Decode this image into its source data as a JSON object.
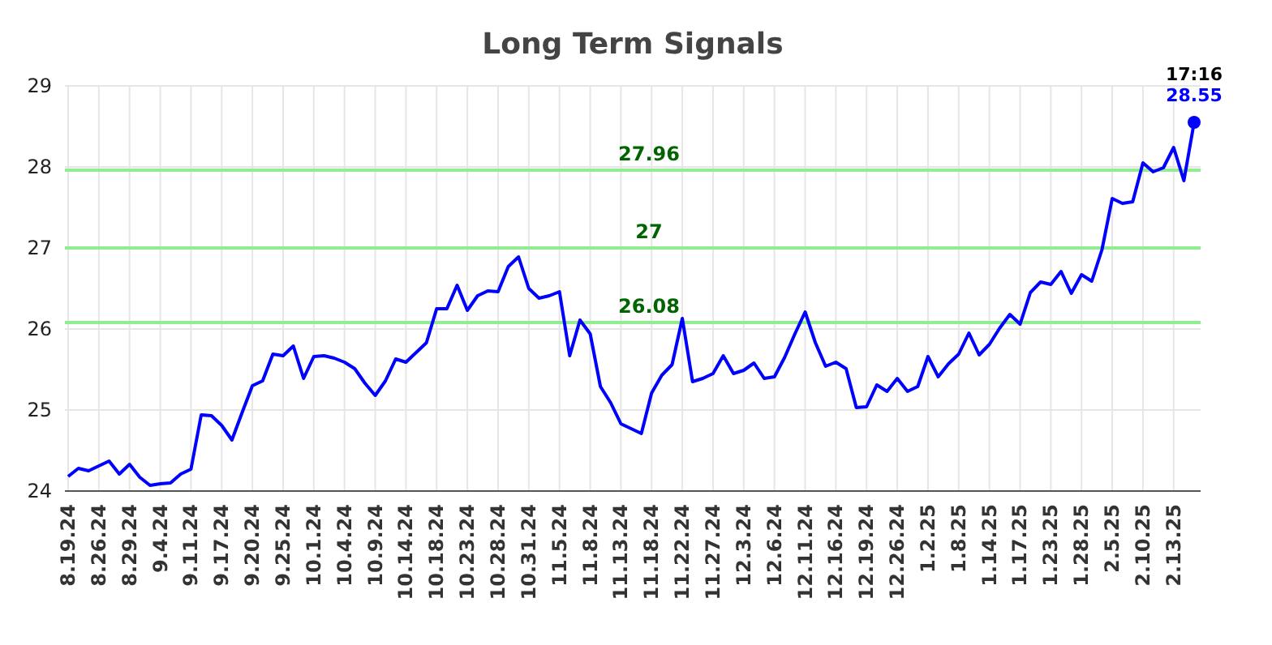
{
  "chart_data": {
    "type": "line",
    "title": "Long Term Signals",
    "categories": [
      "8.19.24",
      null,
      null,
      "8.26.24",
      null,
      null,
      "8.29.24",
      null,
      null,
      "9.4.24",
      null,
      null,
      "9.11.24",
      null,
      null,
      "9.17.24",
      null,
      null,
      "9.20.24",
      null,
      null,
      "9.25.24",
      null,
      null,
      "10.1.24",
      null,
      null,
      "10.4.24",
      null,
      null,
      "10.9.24",
      null,
      null,
      "10.14.24",
      null,
      null,
      "10.18.24",
      null,
      null,
      "10.23.24",
      null,
      null,
      "10.28.24",
      null,
      null,
      "10.31.24",
      null,
      null,
      "11.5.24",
      null,
      null,
      "11.8.24",
      null,
      null,
      "11.13.24",
      null,
      null,
      "11.18.24",
      null,
      null,
      "11.22.24",
      null,
      null,
      "11.27.24",
      null,
      null,
      "12.3.24",
      null,
      null,
      "12.6.24",
      null,
      null,
      "12.11.24",
      null,
      null,
      "12.16.24",
      null,
      null,
      "12.19.24",
      null,
      null,
      "12.26.24",
      null,
      null,
      "1.2.25",
      null,
      null,
      "1.8.25",
      null,
      null,
      "1.14.25",
      null,
      null,
      "1.17.25",
      null,
      null,
      "1.23.25",
      null,
      null,
      "1.28.25",
      null,
      null,
      "2.5.25",
      null,
      null,
      "2.10.25",
      null,
      null,
      "2.13.25",
      null,
      null
    ],
    "series": [
      {
        "color": "#0000ff",
        "values": [
          24.18,
          24.28,
          24.25,
          24.31,
          24.37,
          24.21,
          24.33,
          24.17,
          24.07,
          24.09,
          24.1,
          24.21,
          24.27,
          24.94,
          24.93,
          24.81,
          24.63,
          24.97,
          25.3,
          25.36,
          25.69,
          25.67,
          25.79,
          25.39,
          25.66,
          25.67,
          25.64,
          25.59,
          25.51,
          25.33,
          25.18,
          25.36,
          25.63,
          25.59,
          25.71,
          25.83,
          26.25,
          26.25,
          26.54,
          26.23,
          26.41,
          26.47,
          26.46,
          26.77,
          26.89,
          26.5,
          26.38,
          26.41,
          26.46,
          25.67,
          26.11,
          25.94,
          25.29,
          25.09,
          24.83,
          24.77,
          24.71,
          25.21,
          25.43,
          25.56,
          26.13,
          25.35,
          25.39,
          25.45,
          25.67,
          25.45,
          25.49,
          25.58,
          25.39,
          25.41,
          25.65,
          25.94,
          26.21,
          25.83,
          25.54,
          25.59,
          25.51,
          25.03,
          25.04,
          25.31,
          25.23,
          25.39,
          25.23,
          25.29,
          25.66,
          25.41,
          25.57,
          25.69,
          25.95,
          25.68,
          25.81,
          26.01,
          26.18,
          26.06,
          26.45,
          26.58,
          26.55,
          26.71,
          26.44,
          26.67,
          26.59,
          26.98,
          27.61,
          27.55,
          27.57,
          28.05,
          27.94,
          27.99,
          28.24,
          27.83,
          28.55
        ],
        "value_labels": [
          null,
          null,
          null,
          null,
          null,
          null,
          null,
          null,
          null,
          null,
          null,
          null,
          null,
          null,
          null,
          null,
          null,
          null,
          null,
          null,
          null,
          null,
          null,
          null,
          null,
          null,
          null,
          null,
          null,
          null,
          null,
          null,
          null,
          null,
          null,
          null,
          null,
          null,
          null,
          null,
          null,
          null,
          null,
          null,
          null,
          null,
          null,
          null,
          null,
          null,
          null,
          null,
          null,
          null,
          null,
          null,
          null,
          null,
          null,
          null,
          null,
          null,
          null,
          null,
          null,
          null,
          null,
          null,
          null,
          null,
          null,
          null,
          null,
          null,
          null,
          null,
          null,
          null,
          null,
          null,
          null,
          null,
          null,
          null,
          null,
          null,
          null,
          null,
          null,
          null,
          null,
          null,
          null,
          null,
          null,
          null,
          null,
          null,
          null,
          null,
          null,
          null,
          null,
          null,
          null,
          null,
          null,
          null,
          null,
          null,
          "28.55"
        ]
      }
    ],
    "ylim": [
      24,
      29
    ],
    "yticks": [
      24,
      25,
      26,
      27,
      28,
      29
    ],
    "grid": true,
    "ref_lines": [
      {
        "axis": "y",
        "value": 27.96,
        "label": "27.96",
        "color": "#90ee90"
      },
      {
        "axis": "y",
        "value": 27,
        "label": "27",
        "color": "#90ee90"
      },
      {
        "axis": "y",
        "value": 26.08,
        "label": "26.08",
        "color": "#90ee90"
      }
    ],
    "annotations": [
      {
        "text": "17:16",
        "y": 28.55
      }
    ]
  }
}
